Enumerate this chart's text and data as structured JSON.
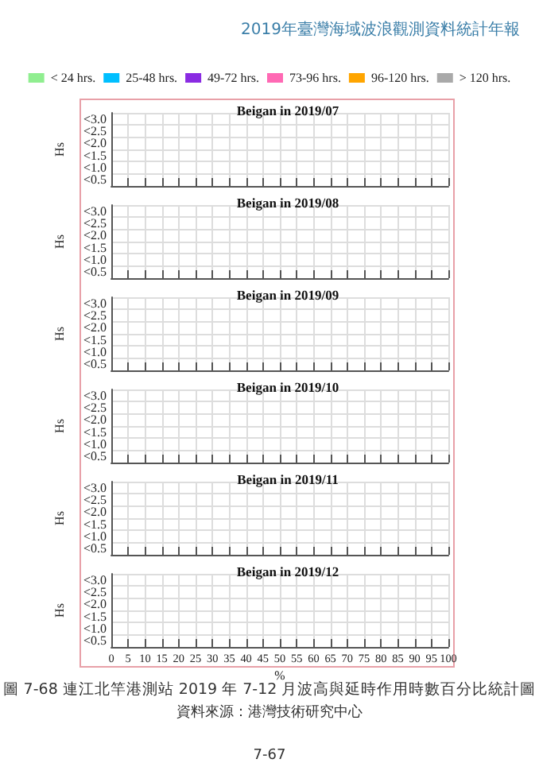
{
  "chart_data": [
    {
      "type": "bar",
      "title": "Beigan in 2019/07",
      "ylabel": "Hs",
      "orientation": "horizontal",
      "categories": [
        "<3.0",
        "<2.5",
        "<2.0",
        "<1.5",
        "<1.0",
        "<0.5"
      ],
      "xlim": [
        0,
        100
      ],
      "xticks": [
        0,
        5,
        10,
        15,
        20,
        25,
        30,
        35,
        40,
        45,
        50,
        55,
        60,
        65,
        70,
        75,
        80,
        85,
        90,
        95,
        100
      ],
      "tick_labels": "y",
      "grid": true,
      "legend": "top",
      "annotations": [
        "2019年臺灣海域波浪觀測資料統計年報"
      ],
      "series": [
        {
          "name": "< 24 hrs.",
          "color": "#90ee90",
          "values": [
            null,
            null,
            null,
            null,
            null,
            null
          ]
        },
        {
          "name": "25-48 hrs.",
          "color": "#00bfff",
          "values": [
            null,
            null,
            null,
            null,
            null,
            null
          ]
        },
        {
          "name": "49-72 hrs.",
          "color": "#8a2be2",
          "values": [
            null,
            null,
            null,
            null,
            null,
            null
          ]
        },
        {
          "name": "73-96 hrs.",
          "color": "#ff69b4",
          "values": [
            null,
            null,
            null,
            null,
            null,
            null
          ]
        },
        {
          "name": "96-120 hrs.",
          "color": "#ffa500",
          "values": [
            null,
            null,
            null,
            null,
            null,
            null
          ]
        },
        {
          "name": "> 120 hrs.",
          "color": "#a9a9a9",
          "values": [
            null,
            null,
            null,
            null,
            null,
            null
          ]
        }
      ]
    },
    {
      "type": "bar",
      "title": "Beigan in 2019/08",
      "ylabel": "Hs",
      "orientation": "horizontal",
      "categories": [
        "<3.0",
        "<2.5",
        "<2.0",
        "<1.5",
        "<1.0",
        "<0.5"
      ],
      "xlim": [
        0,
        100
      ],
      "xticks": [
        0,
        5,
        10,
        15,
        20,
        25,
        30,
        35,
        40,
        45,
        50,
        55,
        60,
        65,
        70,
        75,
        80,
        85,
        90,
        95,
        100
      ],
      "tick_labels": "y",
      "grid": true,
      "series": [
        {
          "color": "#90ee90",
          "values": [
            null,
            null,
            null,
            null,
            null,
            null
          ]
        },
        {
          "color": "#00bfff",
          "values": [
            null,
            null,
            null,
            null,
            null,
            null
          ]
        },
        {
          "color": "#8a2be2",
          "values": [
            null,
            null,
            null,
            null,
            null,
            null
          ]
        },
        {
          "color": "#ff69b4",
          "values": [
            null,
            null,
            null,
            null,
            null,
            null
          ]
        },
        {
          "color": "#ffa500",
          "values": [
            null,
            null,
            null,
            null,
            null,
            null
          ]
        },
        {
          "color": "#a9a9a9",
          "values": [
            null,
            null,
            null,
            null,
            null,
            null
          ]
        }
      ]
    },
    {
      "type": "bar",
      "title": "Beigan in 2019/09",
      "ylabel": "Hs",
      "orientation": "horizontal",
      "categories": [
        "<3.0",
        "<2.5",
        "<2.0",
        "<1.5",
        "<1.0",
        "<0.5"
      ],
      "xlim": [
        0,
        100
      ],
      "xticks": [
        0,
        5,
        10,
        15,
        20,
        25,
        30,
        35,
        40,
        45,
        50,
        55,
        60,
        65,
        70,
        75,
        80,
        85,
        90,
        95,
        100
      ],
      "tick_labels": "y",
      "grid": true,
      "series": [
        {
          "color": "#90ee90",
          "values": [
            null,
            null,
            null,
            null,
            null,
            null
          ]
        },
        {
          "color": "#00bfff",
          "values": [
            null,
            null,
            null,
            null,
            null,
            null
          ]
        },
        {
          "color": "#8a2be2",
          "values": [
            null,
            null,
            null,
            null,
            null,
            null
          ]
        },
        {
          "color": "#ff69b4",
          "values": [
            null,
            null,
            null,
            null,
            null,
            null
          ]
        },
        {
          "color": "#ffa500",
          "values": [
            null,
            null,
            null,
            null,
            null,
            null
          ]
        },
        {
          "color": "#a9a9a9",
          "values": [
            null,
            null,
            null,
            null,
            null,
            null
          ]
        }
      ]
    },
    {
      "type": "bar",
      "title": "Beigan in 2019/10",
      "ylabel": "Hs",
      "orientation": "horizontal",
      "categories": [
        "<3.0",
        "<2.5",
        "<2.0",
        "<1.5",
        "<1.0",
        "<0.5"
      ],
      "xlim": [
        0,
        100
      ],
      "xticks": [
        0,
        5,
        10,
        15,
        20,
        25,
        30,
        35,
        40,
        45,
        50,
        55,
        60,
        65,
        70,
        75,
        80,
        85,
        90,
        95,
        100
      ],
      "tick_labels": "y",
      "grid": true,
      "series": [
        {
          "color": "#90ee90",
          "values": [
            null,
            null,
            null,
            null,
            null,
            null
          ]
        },
        {
          "color": "#00bfff",
          "values": [
            null,
            null,
            null,
            null,
            null,
            null
          ]
        },
        {
          "color": "#8a2be2",
          "values": [
            null,
            null,
            null,
            null,
            null,
            null
          ]
        },
        {
          "color": "#ff69b4",
          "values": [
            null,
            null,
            null,
            null,
            null,
            null
          ]
        },
        {
          "color": "#ffa500",
          "values": [
            null,
            null,
            null,
            null,
            null,
            null
          ]
        },
        {
          "color": "#a9a9a9",
          "values": [
            null,
            null,
            null,
            null,
            null,
            null
          ]
        }
      ]
    },
    {
      "type": "bar",
      "title": "Beigan in 2019/11",
      "ylabel": "Hs",
      "orientation": "horizontal",
      "categories": [
        "<3.0",
        "<2.5",
        "<2.0",
        "<1.5",
        "<1.0",
        "<0.5"
      ],
      "xlim": [
        0,
        100
      ],
      "xticks": [
        0,
        5,
        10,
        15,
        20,
        25,
        30,
        35,
        40,
        45,
        50,
        55,
        60,
        65,
        70,
        75,
        80,
        85,
        90,
        95,
        100
      ],
      "tick_labels": "y",
      "grid": true,
      "series": [
        {
          "color": "#90ee90",
          "values": [
            null,
            null,
            null,
            null,
            null,
            null
          ]
        },
        {
          "color": "#00bfff",
          "values": [
            null,
            null,
            null,
            null,
            null,
            null
          ]
        },
        {
          "color": "#8a2be2",
          "values": [
            null,
            null,
            null,
            null,
            null,
            null
          ]
        },
        {
          "color": "#ff69b4",
          "values": [
            null,
            null,
            null,
            null,
            null,
            null
          ]
        },
        {
          "color": "#ffa500",
          "values": [
            null,
            null,
            null,
            null,
            null,
            null
          ]
        },
        {
          "color": "#a9a9a9",
          "values": [
            null,
            null,
            null,
            null,
            null,
            null
          ]
        }
      ]
    },
    {
      "type": "bar",
      "title": "Beigan in 2019/12",
      "ylabel": "Hs",
      "xlabel": "%",
      "orientation": "horizontal",
      "categories": [
        "<3.0",
        "<2.5",
        "<2.0",
        "<1.5",
        "<1.0",
        "<0.5"
      ],
      "xlim": [
        0,
        100
      ],
      "xticks": [
        0,
        5,
        10,
        15,
        20,
        25,
        30,
        35,
        40,
        45,
        50,
        55,
        60,
        65,
        70,
        75,
        80,
        85,
        90,
        95,
        100
      ],
      "grid": true,
      "annotations": [
        "圖 7-68 連江北竿港測站 2019 年 7-12 月波高與延時作用時數百分比統計圖",
        "資料來源：港灣技術研究中心",
        "7-67"
      ],
      "series": [
        {
          "color": "#90ee90",
          "values": [
            null,
            null,
            null,
            null,
            null,
            null
          ]
        },
        {
          "color": "#00bfff",
          "values": [
            null,
            null,
            null,
            null,
            null,
            null
          ]
        },
        {
          "color": "#8a2be2",
          "values": [
            null,
            null,
            null,
            null,
            null,
            null
          ]
        },
        {
          "color": "#ff69b4",
          "values": [
            null,
            null,
            null,
            null,
            null,
            null
          ]
        },
        {
          "color": "#ffa500",
          "values": [
            null,
            null,
            null,
            null,
            null,
            null
          ]
        },
        {
          "color": "#a9a9a9",
          "values": [
            null,
            null,
            null,
            null,
            null,
            null
          ]
        }
      ]
    }
  ]
}
